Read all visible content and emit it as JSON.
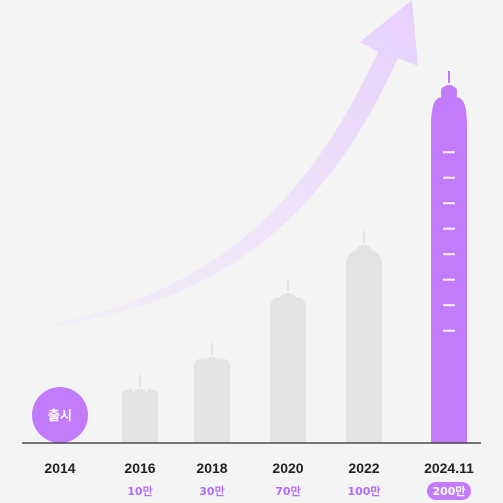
{
  "colors": {
    "background": "#f4f4f4",
    "bar_inactive": "#e3e3e3",
    "bar_highlight": "#c27bfa",
    "accent_text": "#b06cf5",
    "axis": "#4a4a4a",
    "year_text": "#222222",
    "arrow_tip": "#e7cffc",
    "arrow_tail": "#f1e6fb"
  },
  "icons": [
    "trend-arrow-icon"
  ],
  "chart_data": {
    "type": "bar",
    "unit": "만",
    "ylim": [
      0,
      200
    ],
    "categories": [
      "2014",
      "2016",
      "2018",
      "2020",
      "2022",
      "2024.11"
    ],
    "series": [
      {
        "values": [
          0,
          10,
          30,
          70,
          100,
          200
        ]
      }
    ],
    "value_labels": [
      "",
      "10만",
      "30만",
      "70만",
      "100만",
      "200만"
    ],
    "launch_label": "출시",
    "highlight_index": 5
  }
}
